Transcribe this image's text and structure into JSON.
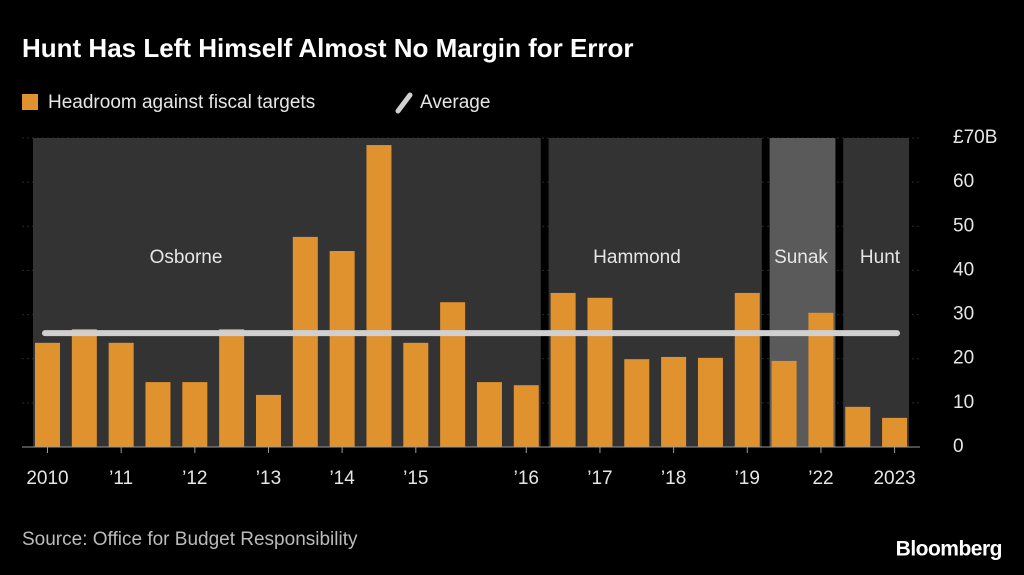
{
  "chart_data": {
    "type": "bar",
    "title": "Hunt Has Left Himself Almost No Margin for Error",
    "categories": [
      "2010",
      null,
      "’11",
      null,
      "’12",
      null,
      "’13",
      null,
      "’14",
      null,
      "’15",
      null,
      null,
      "’16",
      null,
      "’17",
      null,
      "’18",
      null,
      "’19",
      null,
      "’22",
      null,
      "2023"
    ],
    "series": [
      {
        "name": "Headroom against fiscal targets",
        "color": "#e0922f",
        "values": [
          23.6,
          26.7,
          23.6,
          14.7,
          14.7,
          26.7,
          11.8,
          47.6,
          44.4,
          68.4,
          23.6,
          32.8,
          14.7,
          14.0,
          34.9,
          33.8,
          19.9,
          20.4,
          20.2,
          34.9,
          19.5,
          30.4,
          9.1,
          6.6
        ]
      }
    ],
    "average": {
      "name": "Average",
      "value": 25.8,
      "color": "#d0d0d0"
    },
    "periods": [
      "Osborne",
      "Hammond",
      "Sunak",
      "Hunt"
    ],
    "ylim": [
      0,
      70
    ],
    "yticks": [
      0,
      10,
      20,
      30,
      40,
      50,
      60,
      {
        "value": 70,
        "label": "£70B"
      }
    ],
    "source": "Source: Office for Budget Responsibility",
    "brand": "Bloomberg"
  }
}
